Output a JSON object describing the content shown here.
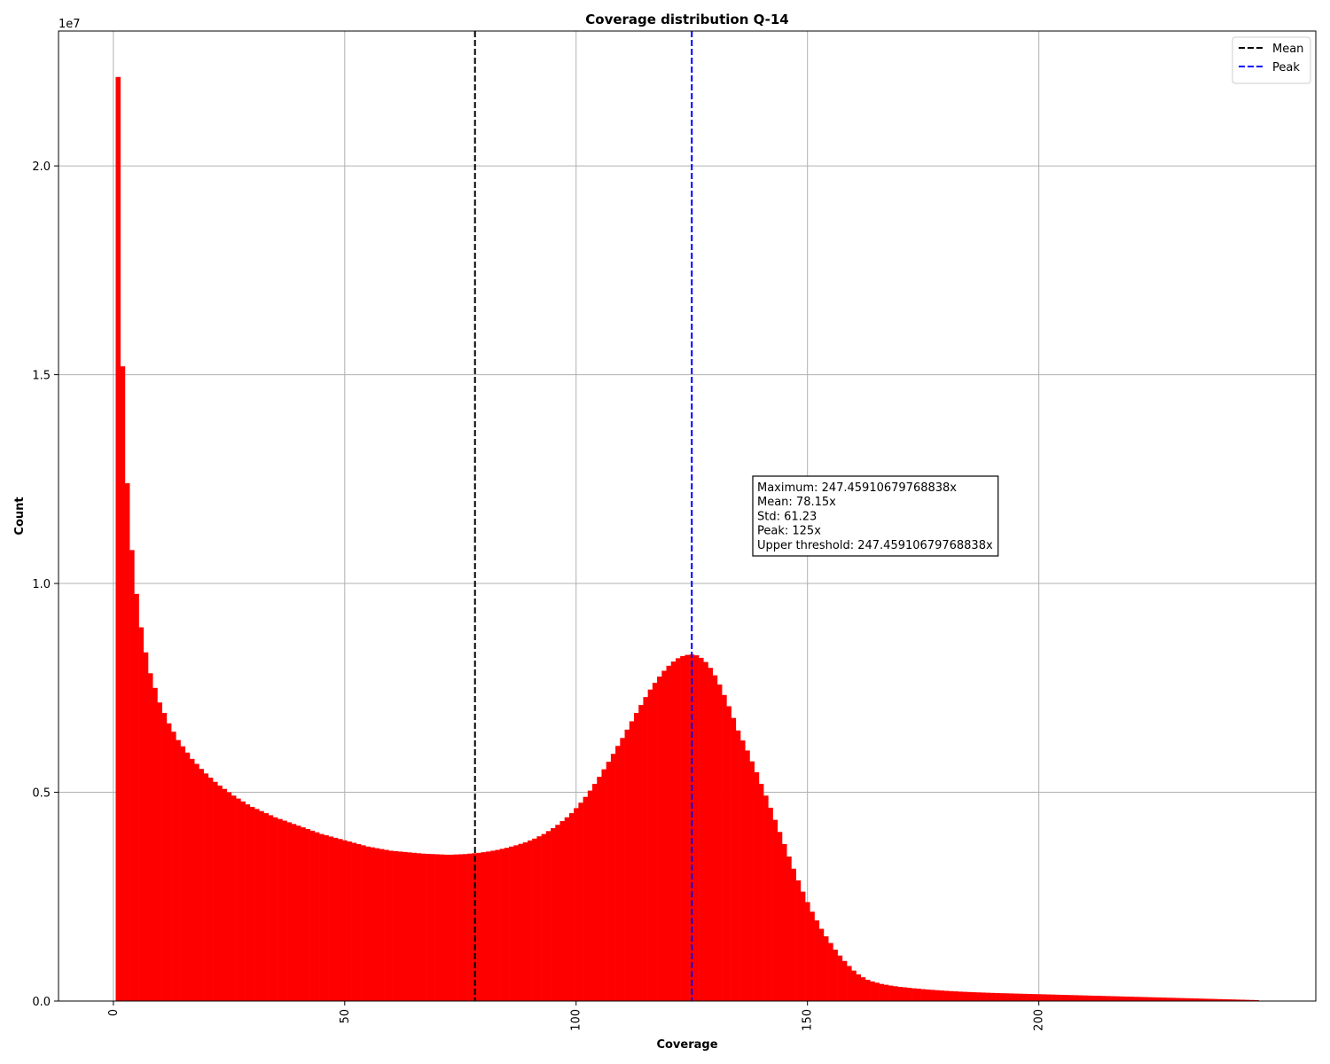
{
  "chart_data": {
    "type": "histogram",
    "title": "Coverage distribution Q-14",
    "xlabel": "Coverage",
    "ylabel": "Count",
    "y_offset_label": "1e7",
    "color": "#ff0000",
    "grid": true,
    "legend_position": "upper right",
    "xlim": [
      -11.85,
      259.85
    ],
    "ylim": [
      0,
      23230000
    ],
    "xticks": [
      0,
      50,
      100,
      150,
      200
    ],
    "yticks": [
      {
        "value": 0,
        "label": "0.0"
      },
      {
        "value": 5000000,
        "label": "0.5"
      },
      {
        "value": 10000000,
        "label": "1.0"
      },
      {
        "value": 15000000,
        "label": "1.5"
      },
      {
        "value": 20000000,
        "label": "2.0"
      }
    ],
    "vlines": [
      {
        "name": "Mean",
        "x": 78.15,
        "color": "#000000"
      },
      {
        "name": "Peak",
        "x": 125,
        "color": "#0000ff"
      }
    ],
    "annotation": [
      "Maximum: 247.45910679768838x",
      "Mean: 78.15x",
      "Std: 61.23",
      "Peak: 125x",
      "Upper threshold: 247.45910679768838x"
    ],
    "bins": [
      0.5,
      1.5,
      2.5,
      3.5,
      4.5,
      5.5,
      6.5,
      7.5,
      8.5,
      9.5,
      10.5,
      11.5,
      12.5,
      13.5,
      14.5,
      15.5,
      16.5,
      17.5,
      18.5,
      19.5,
      20.5,
      21.5,
      22.5,
      23.5,
      24.5,
      25.5,
      26.5,
      27.5,
      28.5,
      29.5,
      30.5,
      31.5,
      32.5,
      33.5,
      34.5,
      35.5,
      36.5,
      37.5,
      38.5,
      39.5,
      40.5,
      41.5,
      42.5,
      43.5,
      44.5,
      45.5,
      46.5,
      47.5,
      48.5,
      49.5,
      50.5,
      51.5,
      52.5,
      53.5,
      54.5,
      55.5,
      56.5,
      57.5,
      58.5,
      59.5,
      60.5,
      61.5,
      62.5,
      63.5,
      64.5,
      65.5,
      66.5,
      67.5,
      68.5,
      69.5,
      70.5,
      71.5,
      72.5,
      73.5,
      74.5,
      75.5,
      76.5,
      77.5,
      78.5,
      79.5,
      80.5,
      81.5,
      82.5,
      83.5,
      84.5,
      85.5,
      86.5,
      87.5,
      88.5,
      89.5,
      90.5,
      91.5,
      92.5,
      93.5,
      94.5,
      95.5,
      96.5,
      97.5,
      98.5,
      99.5,
      100.5,
      101.5,
      102.5,
      103.5,
      104.5,
      105.5,
      106.5,
      107.5,
      108.5,
      109.5,
      110.5,
      111.5,
      112.5,
      113.5,
      114.5,
      115.5,
      116.5,
      117.5,
      118.5,
      119.5,
      120.5,
      121.5,
      122.5,
      123.5,
      124.5,
      125.5,
      126.5,
      127.5,
      128.5,
      129.5,
      130.5,
      131.5,
      132.5,
      133.5,
      134.5,
      135.5,
      136.5,
      137.5,
      138.5,
      139.5,
      140.5,
      141.5,
      142.5,
      143.5,
      144.5,
      145.5,
      146.5,
      147.5,
      148.5,
      149.5,
      150.5,
      151.5,
      152.5,
      153.5,
      154.5,
      155.5,
      156.5,
      157.5,
      158.5,
      159.5,
      160.5,
      161.5,
      162.5,
      163.5,
      164.5,
      165.5,
      166.5,
      167.5,
      168.5,
      169.5,
      170.5,
      171.5,
      172.5,
      173.5,
      174.5,
      175.5,
      176.5,
      177.5,
      178.5,
      179.5,
      180.5,
      181.5,
      182.5,
      183.5,
      184.5,
      185.5,
      186.5,
      187.5,
      188.5,
      189.5,
      190.5,
      191.5,
      192.5,
      193.5,
      194.5,
      195.5,
      196.5,
      197.5,
      198.5,
      199.5,
      200.5,
      201.5,
      202.5,
      203.5,
      204.5,
      205.5,
      206.5,
      207.5,
      208.5,
      209.5,
      210.5,
      211.5,
      212.5,
      213.5,
      214.5,
      215.5,
      216.5,
      217.5,
      218.5,
      219.5,
      220.5,
      221.5,
      222.5,
      223.5,
      224.5,
      225.5,
      226.5,
      227.5,
      228.5,
      229.5,
      230.5,
      231.5,
      232.5,
      233.5,
      234.5,
      235.5,
      236.5,
      237.5,
      238.5,
      239.5,
      240.5,
      241.5,
      242.5,
      243.5,
      244.5,
      245.5,
      246.5,
      247.5
    ],
    "values": [
      22130000,
      15200000,
      12400000,
      10800000,
      9750000,
      8950000,
      8350000,
      7850000,
      7500000,
      7150000,
      6900000,
      6650000,
      6450000,
      6250000,
      6100000,
      5950000,
      5800000,
      5680000,
      5560000,
      5450000,
      5350000,
      5250000,
      5160000,
      5080000,
      5000000,
      4920000,
      4850000,
      4780000,
      4710000,
      4650000,
      4600000,
      4550000,
      4500000,
      4450000,
      4400000,
      4360000,
      4320000,
      4280000,
      4240000,
      4200000,
      4160000,
      4120000,
      4080000,
      4040000,
      4000000,
      3970000,
      3940000,
      3910000,
      3880000,
      3850000,
      3820000,
      3790000,
      3760000,
      3730000,
      3700000,
      3680000,
      3660000,
      3640000,
      3620000,
      3600000,
      3590000,
      3580000,
      3570000,
      3560000,
      3550000,
      3540000,
      3530000,
      3525000,
      3520000,
      3515000,
      3510000,
      3505000,
      3505000,
      3510000,
      3515000,
      3520000,
      3530000,
      3540000,
      3550000,
      3565000,
      3580000,
      3600000,
      3620000,
      3645000,
      3670000,
      3700000,
      3730000,
      3765000,
      3800000,
      3845000,
      3890000,
      3945000,
      4000000,
      4070000,
      4140000,
      4220000,
      4310000,
      4400000,
      4500000,
      4620000,
      4750000,
      4890000,
      5040000,
      5200000,
      5370000,
      5550000,
      5730000,
      5920000,
      6110000,
      6300000,
      6500000,
      6700000,
      6900000,
      7090000,
      7280000,
      7460000,
      7620000,
      7770000,
      7910000,
      8030000,
      8130000,
      8210000,
      8260000,
      8290000,
      8300000,
      8280000,
      8220000,
      8120000,
      7980000,
      7800000,
      7580000,
      7330000,
      7060000,
      6780000,
      6480000,
      6240000,
      6000000,
      5740000,
      5480000,
      5200000,
      4920000,
      4630000,
      4340000,
      4050000,
      3760000,
      3460000,
      3170000,
      2890000,
      2620000,
      2370000,
      2140000,
      1930000,
      1730000,
      1550000,
      1390000,
      1230000,
      1090000,
      960000,
      840000,
      730000,
      640000,
      570000,
      510000,
      470000,
      440000,
      410000,
      390000,
      370000,
      355000,
      340000,
      328000,
      316000,
      305000,
      295000,
      285000,
      276000,
      268000,
      260000,
      252000,
      245000,
      238000,
      232000,
      226000,
      221000,
      216000,
      211000,
      207000,
      203000,
      199000,
      195000,
      191000,
      188000,
      185000,
      182000,
      179000,
      176000,
      173000,
      170000,
      167000,
      164000,
      161000,
      158000,
      155000,
      152000,
      149000,
      146000,
      143000,
      140000,
      137000,
      134000,
      131000,
      128000,
      125000,
      122000,
      119000,
      116000,
      113000,
      110000,
      107000,
      104000,
      101000,
      98000,
      95000,
      92000,
      89000,
      86000,
      83000,
      80000,
      77000,
      74000,
      71000,
      68000,
      65000,
      62000,
      59000,
      56000,
      53000,
      50000,
      47000,
      44000,
      41000,
      38000,
      35000,
      32000,
      29000,
      26000,
      23000
    ]
  }
}
